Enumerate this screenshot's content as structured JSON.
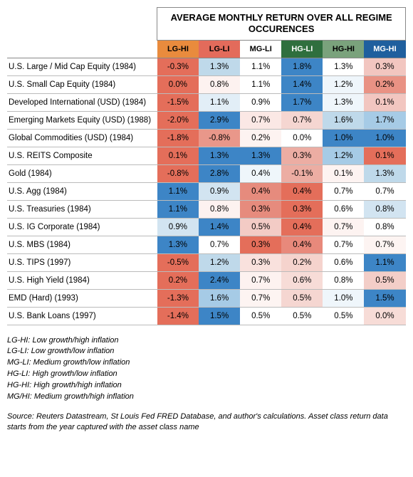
{
  "title": "AVERAGE MONTHLY RETURN OVER ALL REGIME OCCURENCES",
  "columns": [
    {
      "key": "LG-HI",
      "label": "LG-HI",
      "bg": "#e98b3d",
      "fg": "#000000"
    },
    {
      "key": "LG-LI",
      "label": "LG-LI",
      "bg": "#e36b5b",
      "fg": "#000000"
    },
    {
      "key": "MG-LI",
      "label": "MG-LI",
      "bg": "#ffffff",
      "fg": "#000000"
    },
    {
      "key": "HG-LI",
      "label": "HG-LI",
      "bg": "#2f6f3e",
      "fg": "#ffffff"
    },
    {
      "key": "HG-HI",
      "label": "HG-HI",
      "bg": "#7aa27c",
      "fg": "#000000"
    },
    {
      "key": "MG-HI",
      "label": "MG-HI",
      "bg": "#1f5f9e",
      "fg": "#ffffff"
    }
  ],
  "rows": [
    {
      "label": "U.S. Large / Mid Cap Equity (1984)",
      "cells": [
        {
          "v": "-0.3%",
          "bg": "#e46e5a"
        },
        {
          "v": "1.3%",
          "bg": "#bfd9ea"
        },
        {
          "v": "1.1%",
          "bg": "#ffffff"
        },
        {
          "v": "1.8%",
          "bg": "#3d85c6"
        },
        {
          "v": "1.3%",
          "bg": "#ffffff"
        },
        {
          "v": "0.3%",
          "bg": "#f2c6c0"
        }
      ]
    },
    {
      "label": "U.S. Small Cap Equity (1984)",
      "cells": [
        {
          "v": "0.0%",
          "bg": "#e46e5a"
        },
        {
          "v": "0.8%",
          "bg": "#fdf2f0"
        },
        {
          "v": "1.1%",
          "bg": "#ffffff"
        },
        {
          "v": "1.4%",
          "bg": "#3d85c6"
        },
        {
          "v": "1.2%",
          "bg": "#eff6fb"
        },
        {
          "v": "0.2%",
          "bg": "#e99284"
        }
      ]
    },
    {
      "label": "Developed International (USD) (1984)",
      "cells": [
        {
          "v": "-1.5%",
          "bg": "#e46e5a"
        },
        {
          "v": "1.1%",
          "bg": "#e2eef7"
        },
        {
          "v": "0.9%",
          "bg": "#ffffff"
        },
        {
          "v": "1.7%",
          "bg": "#3d85c6"
        },
        {
          "v": "1.3%",
          "bg": "#eff6fb"
        },
        {
          "v": "0.1%",
          "bg": "#f2c6c0"
        }
      ]
    },
    {
      "label": "Emerging Markets Equity (USD) (1988)",
      "cells": [
        {
          "v": "-2.0%",
          "bg": "#e46e5a"
        },
        {
          "v": "2.9%",
          "bg": "#3d85c6"
        },
        {
          "v": "0.7%",
          "bg": "#fbe8e5"
        },
        {
          "v": "0.7%",
          "bg": "#f5d6d1"
        },
        {
          "v": "1.6%",
          "bg": "#bfd9ea"
        },
        {
          "v": "1.7%",
          "bg": "#a6cbe6"
        }
      ]
    },
    {
      "label": "Global Commodities (USD) (1984)",
      "cells": [
        {
          "v": "-1.8%",
          "bg": "#e46e5a"
        },
        {
          "v": "-0.8%",
          "bg": "#e9978a"
        },
        {
          "v": "0.2%",
          "bg": "#fdf3f1"
        },
        {
          "v": "0.0%",
          "bg": "#ffffff"
        },
        {
          "v": "1.0%",
          "bg": "#3d85c6"
        },
        {
          "v": "1.0%",
          "bg": "#3d85c6"
        }
      ]
    },
    {
      "label": "U.S. REITS Composite",
      "cells": [
        {
          "v": "0.1%",
          "bg": "#e46e5a"
        },
        {
          "v": "1.3%",
          "bg": "#3d85c6"
        },
        {
          "v": "1.3%",
          "bg": "#3d85c6"
        },
        {
          "v": "0.3%",
          "bg": "#ecada3"
        },
        {
          "v": "1.2%",
          "bg": "#a6cbe6"
        },
        {
          "v": "0.1%",
          "bg": "#e46e5a"
        }
      ]
    },
    {
      "label": "Gold (1984)",
      "cells": [
        {
          "v": "-0.8%",
          "bg": "#e46e5a"
        },
        {
          "v": "2.8%",
          "bg": "#3d85c6"
        },
        {
          "v": "0.4%",
          "bg": "#eff6fb"
        },
        {
          "v": "-0.1%",
          "bg": "#ecada3"
        },
        {
          "v": "0.1%",
          "bg": "#fdf3f1"
        },
        {
          "v": "1.3%",
          "bg": "#bfd9ea"
        }
      ]
    },
    {
      "label": "U.S. Agg (1984)",
      "cells": [
        {
          "v": "1.1%",
          "bg": "#3d85c6"
        },
        {
          "v": "0.9%",
          "bg": "#d2e4f1"
        },
        {
          "v": "0.4%",
          "bg": "#e68b7d"
        },
        {
          "v": "0.4%",
          "bg": "#e46e5a"
        },
        {
          "v": "0.7%",
          "bg": "#ffffff"
        },
        {
          "v": "0.7%",
          "bg": "#ffffff"
        }
      ]
    },
    {
      "label": "U.S. Treasuries (1984)",
      "cells": [
        {
          "v": "1.1%",
          "bg": "#3d85c6"
        },
        {
          "v": "0.8%",
          "bg": "#fdf2f0"
        },
        {
          "v": "0.3%",
          "bg": "#e68b7d"
        },
        {
          "v": "0.3%",
          "bg": "#e46e5a"
        },
        {
          "v": "0.6%",
          "bg": "#ffffff"
        },
        {
          "v": "0.8%",
          "bg": "#d2e4f1"
        }
      ]
    },
    {
      "label": "U.S. IG Corporate (1984)",
      "cells": [
        {
          "v": "0.9%",
          "bg": "#d2e4f1"
        },
        {
          "v": "1.4%",
          "bg": "#3d85c6"
        },
        {
          "v": "0.5%",
          "bg": "#f3cbc5"
        },
        {
          "v": "0.4%",
          "bg": "#e46e5a"
        },
        {
          "v": "0.7%",
          "bg": "#fdf3f1"
        },
        {
          "v": "0.8%",
          "bg": "#ffffff"
        }
      ]
    },
    {
      "label": "U.S. MBS (1984)",
      "cells": [
        {
          "v": "1.3%",
          "bg": "#3d85c6"
        },
        {
          "v": "0.7%",
          "bg": "#ffffff"
        },
        {
          "v": "0.3%",
          "bg": "#e46e5a"
        },
        {
          "v": "0.4%",
          "bg": "#e8897b"
        },
        {
          "v": "0.7%",
          "bg": "#ffffff"
        },
        {
          "v": "0.7%",
          "bg": "#fdf4f2"
        }
      ]
    },
    {
      "label": "U.S. TIPS (1997)",
      "cells": [
        {
          "v": "-0.5%",
          "bg": "#e46e5a"
        },
        {
          "v": "1.2%",
          "bg": "#bfd9ea"
        },
        {
          "v": "0.3%",
          "bg": "#f9e1dd"
        },
        {
          "v": "0.2%",
          "bg": "#f5d3cd"
        },
        {
          "v": "0.6%",
          "bg": "#ffffff"
        },
        {
          "v": "1.1%",
          "bg": "#3d85c6"
        }
      ]
    },
    {
      "label": "U.S. High Yield (1984)",
      "cells": [
        {
          "v": "0.2%",
          "bg": "#e46e5a"
        },
        {
          "v": "2.4%",
          "bg": "#3d85c6"
        },
        {
          "v": "0.7%",
          "bg": "#fdf2f0"
        },
        {
          "v": "0.6%",
          "bg": "#f7dcd7"
        },
        {
          "v": "0.8%",
          "bg": "#ffffff"
        },
        {
          "v": "0.5%",
          "bg": "#f3cec8"
        }
      ]
    },
    {
      "label": "EMD (Hard) (1993)",
      "cells": [
        {
          "v": "-1.3%",
          "bg": "#e46e5a"
        },
        {
          "v": "1.6%",
          "bg": "#a6cbe6"
        },
        {
          "v": "0.7%",
          "bg": "#fdf4f2"
        },
        {
          "v": "0.5%",
          "bg": "#f5d6d1"
        },
        {
          "v": "1.0%",
          "bg": "#eff6fb"
        },
        {
          "v": "1.5%",
          "bg": "#3d85c6"
        }
      ]
    },
    {
      "label": "U.S. Bank Loans (1997)",
      "cells": [
        {
          "v": "-1.4%",
          "bg": "#e46e5a"
        },
        {
          "v": "1.5%",
          "bg": "#3d85c6"
        },
        {
          "v": "0.5%",
          "bg": "#ffffff"
        },
        {
          "v": "0.5%",
          "bg": "#ffffff"
        },
        {
          "v": "0.5%",
          "bg": "#ffffff"
        },
        {
          "v": "0.0%",
          "bg": "#f7dcd7"
        }
      ]
    }
  ],
  "legend": [
    "LG-HI: Low growth/high inflation",
    "LG-LI: Low growth/low inflation",
    "MG-LI: Medium growth/low inflation",
    "HG-LI: High growth/low inflation",
    "HG-HI: High growth/high inflation",
    "MG/HI: Medium growth/high inflation"
  ],
  "source": "Source: Reuters Datastream, St Louis Fed FRED Database, and author's calculations. Asset class return data starts from the year captured with the asset class name"
}
